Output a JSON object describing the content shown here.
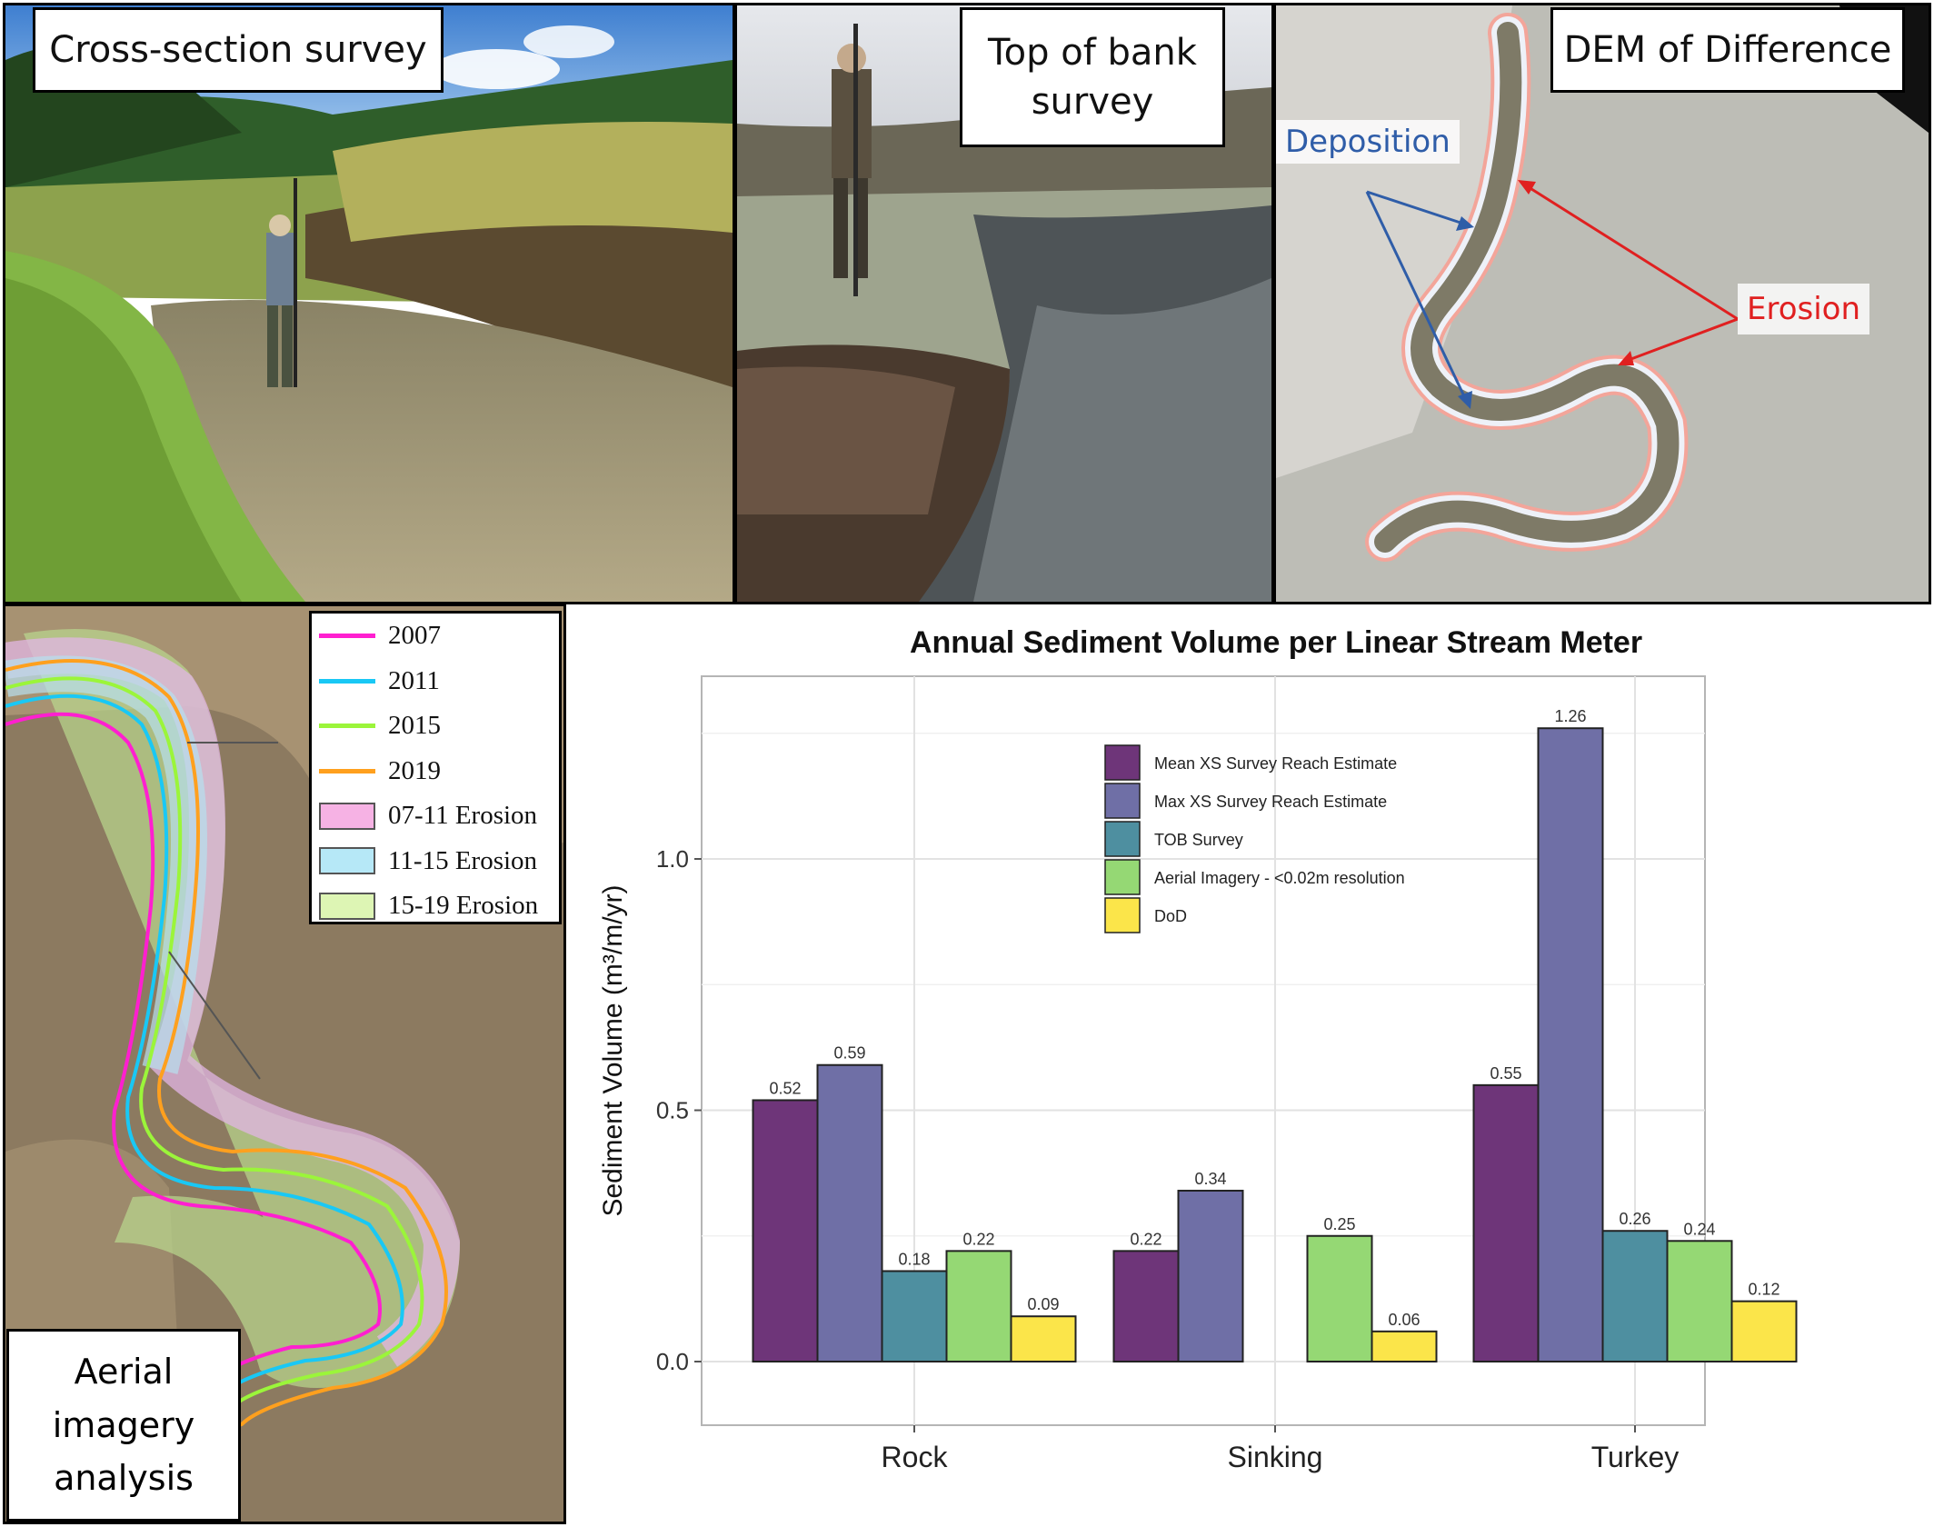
{
  "panels": {
    "xs_survey": {
      "caption": "Cross-section survey"
    },
    "tob_survey": {
      "caption_line1": "Top of bank",
      "caption_line2": "survey"
    },
    "dod": {
      "caption": "DEM of Difference",
      "deposition_label": "Deposition",
      "erosion_label": "Erosion"
    },
    "aerial": {
      "caption_line1": "Aerial",
      "caption_line2": "imagery",
      "caption_line3": "analysis",
      "legend": [
        {
          "label": "2007",
          "color": "#ff1fd0",
          "kind": "line"
        },
        {
          "label": "2011",
          "color": "#19c8f5",
          "kind": "line"
        },
        {
          "label": "2015",
          "color": "#9bf53a",
          "kind": "line"
        },
        {
          "label": "2019",
          "color": "#ffa01e",
          "kind": "line"
        },
        {
          "label": "07-11 Erosion",
          "color": "#f6b2e4",
          "kind": "fill"
        },
        {
          "label": "11-15 Erosion",
          "color": "#b6e8f7",
          "kind": "fill"
        },
        {
          "label": "15-19 Erosion",
          "color": "#ddf5b4",
          "kind": "fill"
        }
      ]
    }
  },
  "chart_data": {
    "type": "bar",
    "title": "Annual Sediment Volume per Linear Stream Meter",
    "ylabel": "Sediment Volume (m³/m/yr)",
    "xlabel": "",
    "ylim": [
      0,
      1.33
    ],
    "yticks": [
      "0.0",
      "0.5",
      "1.0"
    ],
    "grid": true,
    "legend_position": "top-center",
    "categories": [
      "Rock",
      "Sinking",
      "Turkey"
    ],
    "series": [
      {
        "name": "Mean XS Survey Reach Estimate",
        "color": "#6e3579",
        "values": [
          0.52,
          0.22,
          0.55
        ],
        "labels": [
          "0.52",
          "0.22",
          "0.55"
        ]
      },
      {
        "name": "Max XS Survey Reach Estimate",
        "color": "#6f6fa6",
        "values": [
          0.59,
          0.34,
          1.26
        ],
        "labels": [
          "0.59",
          "0.34",
          "1.26"
        ]
      },
      {
        "name": "TOB Survey",
        "color": "#4e8fa0",
        "values": [
          0.18,
          null,
          0.26
        ],
        "labels": [
          "0.18",
          "",
          "0.26"
        ]
      },
      {
        "name": "Aerial Imagery - <0.02m resolution",
        "color": "#95d874",
        "values": [
          0.22,
          0.25,
          0.24
        ],
        "labels": [
          "0.22",
          "0.25",
          "0.24"
        ]
      },
      {
        "name": "DoD",
        "color": "#fbe54a",
        "values": [
          0.09,
          0.06,
          0.12
        ],
        "labels": [
          "0.09",
          "0.06",
          "0.12"
        ]
      }
    ]
  }
}
